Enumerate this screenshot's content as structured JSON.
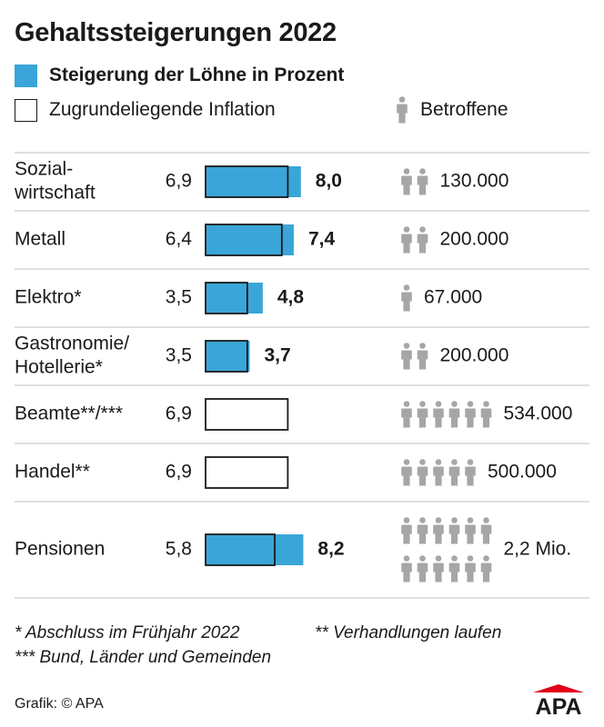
{
  "title": "Gehaltssteigerungen 2022",
  "legend": {
    "wage_increase": "Steigerung der Löhne in Prozent",
    "inflation": "Zugrundeliegende Inflation",
    "affected": "Betroffene"
  },
  "colors": {
    "bar_fill": "#3aa5d8",
    "person": "#a6a6a6",
    "line": "#cccccc",
    "logo_red": "#e2001a"
  },
  "chart_data": {
    "type": "bar",
    "orientation": "horizontal",
    "title": "Gehaltssteigerungen 2022",
    "categories": [
      "Sozial-\nwirtschaft",
      "Metall",
      "Elektro*",
      "Gastronomie/\nHotellerie*",
      "Beamte**/***",
      "Handel**",
      "Pensionen"
    ],
    "series": [
      {
        "name": "Zugrundeliegende Inflation",
        "values": [
          6.9,
          6.4,
          3.5,
          3.5,
          6.9,
          6.9,
          5.8
        ],
        "labels": [
          "6,9",
          "6,4",
          "3,5",
          "3,5",
          "6,9",
          "6,9",
          "5,8"
        ]
      },
      {
        "name": "Steigerung der Löhne in Prozent",
        "values": [
          8.0,
          7.4,
          4.8,
          3.7,
          null,
          null,
          8.2
        ],
        "labels": [
          "8,0",
          "7,4",
          "4,8",
          "3,7",
          "",
          "",
          "8,2"
        ]
      }
    ],
    "affected": {
      "name": "Betroffene",
      "labels": [
        "130.000",
        "200.000",
        "67.000",
        "200.000",
        "534.000",
        "500.000",
        "2,2 Mio."
      ],
      "icon_counts": [
        2,
        2,
        1,
        2,
        6,
        5,
        12
      ]
    },
    "xlim": [
      0,
      10
    ]
  },
  "footnotes": {
    "note1": "* Abschluss im Frühjahr 2022",
    "note2": "** Verhandlungen laufen",
    "note3": "*** Bund, Länder und Gemeinden"
  },
  "source": "Grafik: © APA",
  "logo_text": "APA"
}
